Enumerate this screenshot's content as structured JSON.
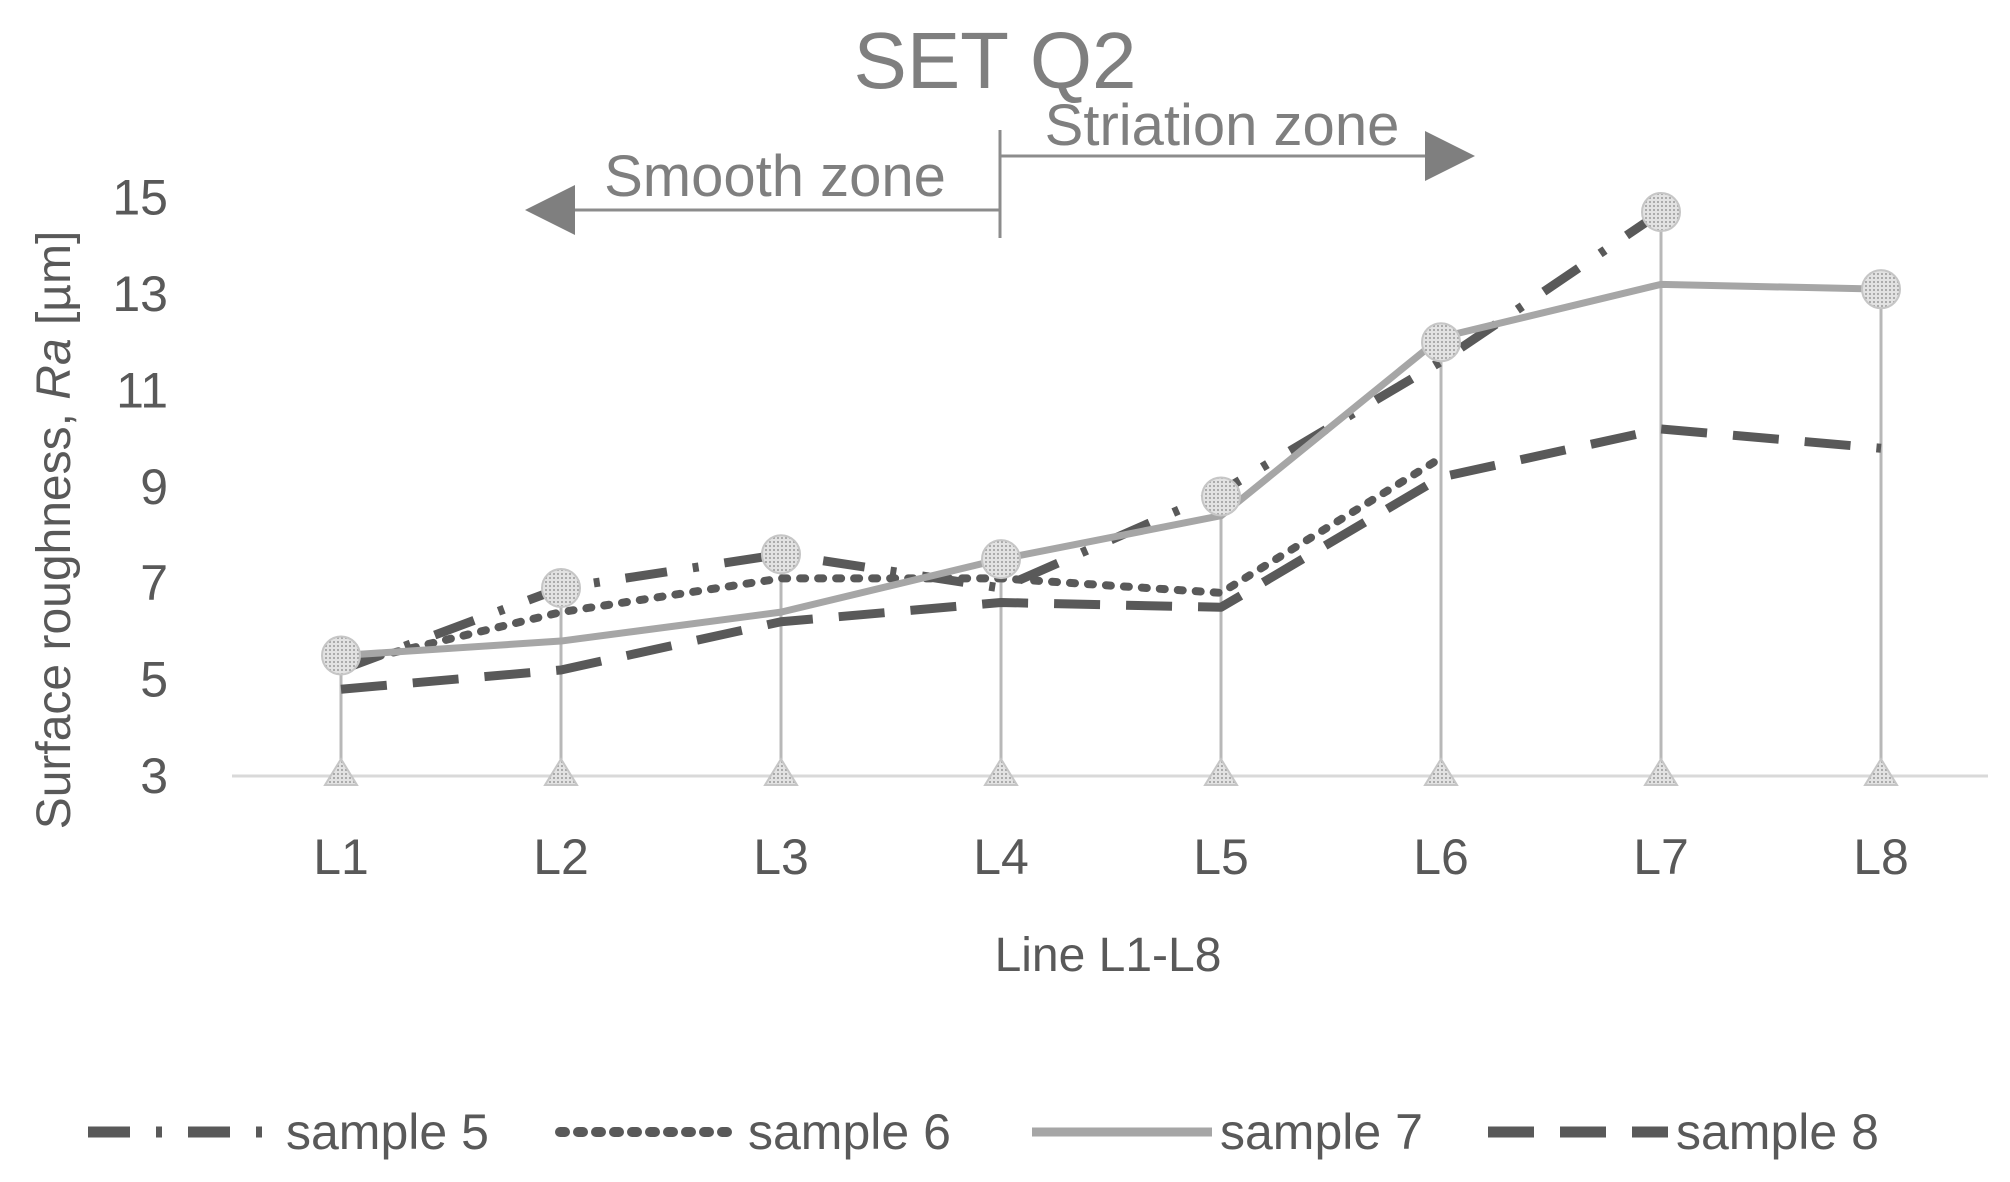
{
  "chart_data": {
    "type": "line",
    "title": "SET Q2",
    "xlabel": "Line L1-L8",
    "ylabel_main": "Surface roughness, ",
    "ylabel_italic": "Ra",
    "ylabel_unit": " [µm]",
    "categories": [
      "L1",
      "L2",
      "L3",
      "L4",
      "L5",
      "L6",
      "L7",
      "L8"
    ],
    "yticks": [
      "3",
      "5",
      "7",
      "9",
      "11",
      "13",
      "15"
    ],
    "ylim": [
      3,
      15
    ],
    "annotations": {
      "smooth_zone": "Smooth zone",
      "striation_zone": "Striation zone",
      "divider_category": "L4"
    },
    "series": [
      {
        "name": "sample 5",
        "style": "dash-dot",
        "color": "#595959",
        "values": [
          5.2,
          6.9,
          7.6,
          6.9,
          8.9,
          11.6,
          14.7,
          null
        ]
      },
      {
        "name": "sample 6",
        "style": "dotted",
        "color": "#595959",
        "values": [
          5.3,
          6.4,
          7.1,
          7.1,
          6.8,
          9.6,
          null,
          null
        ]
      },
      {
        "name": "sample 7",
        "style": "solid",
        "color": "#a6a6a6",
        "values": [
          5.5,
          5.8,
          6.4,
          7.5,
          8.4,
          12.1,
          13.2,
          13.1
        ]
      },
      {
        "name": "sample 8",
        "style": "dashed",
        "color": "#595959",
        "values": [
          4.8,
          5.2,
          6.2,
          6.6,
          6.5,
          9.2,
          10.2,
          9.8
        ]
      }
    ],
    "marker_values": [
      5.5,
      6.9,
      7.6,
      7.5,
      8.8,
      12.0,
      14.7,
      13.1
    ],
    "legend_position": "bottom"
  }
}
